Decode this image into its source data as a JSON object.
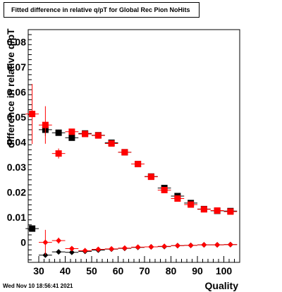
{
  "title": "Fitted difference in relative q/pT for Global Rec Pion NoHits",
  "timestamp": "Wed Nov 10 18:56:41 2021",
  "chart_data": {
    "type": "scatter",
    "title": "Fitted difference in relative q/pT for Global Rec Pion NoHits",
    "xlabel": "Quality",
    "ylabel": "difference in relative q/pT",
    "xlim": [
      26,
      106
    ],
    "ylim": [
      -0.008,
      0.085
    ],
    "grid": true,
    "x_ticks": [
      30,
      40,
      50,
      60,
      70,
      80,
      90,
      100
    ],
    "x_tick_labels": [
      "30",
      "40",
      "50",
      "60",
      "70",
      "80",
      "90",
      "100"
    ],
    "y_ticks": [
      0,
      0.01,
      0.02,
      0.03,
      0.04,
      0.05,
      0.06,
      0.07,
      0.08
    ],
    "y_tick_labels": [
      "0",
      "0.01",
      "0.02",
      "0.03",
      "0.04",
      "0.05",
      "0.06",
      "0.07",
      "0.08"
    ],
    "series": [
      {
        "marker": "square",
        "color": "#000000",
        "x": [
          27.5,
          32.5,
          37.5,
          42.5,
          47.5,
          52.5,
          57.5,
          62.5,
          67.5,
          72.5,
          77.5,
          82.5,
          87.5,
          92.5,
          97.5,
          102.5
        ],
        "y": [
          0.0055,
          0.045,
          0.0438,
          0.0418,
          0.0435,
          0.0428,
          0.0398,
          0.036,
          0.0313,
          0.0263,
          0.0217,
          0.0185,
          0.0157,
          0.0133,
          0.0126,
          0.0125
        ],
        "yerr": [
          0.0003,
          0.0025,
          0.0012,
          0.0008,
          0.0006,
          0.0006,
          0.0006,
          0.0005,
          0.0005,
          0.0005,
          0.0004,
          0.0004,
          0.0004,
          0.0004,
          0.0004,
          0.0004
        ]
      },
      {
        "marker": "square",
        "color": "#ff0000",
        "x": [
          27.5,
          32.5,
          37.5,
          42.5,
          47.5,
          52.5,
          57.5,
          62.5,
          67.5,
          72.5,
          77.5,
          82.5,
          87.5,
          92.5,
          97.5,
          102.5
        ],
        "y": [
          0.0513,
          0.0469,
          0.0355,
          0.0442,
          0.0433,
          0.0427,
          0.0395,
          0.036,
          0.0313,
          0.0262,
          0.0209,
          0.0175,
          0.0151,
          0.0132,
          0.0127,
          0.0123
        ],
        "yerr": [
          0.012,
          0.0075,
          0.002,
          0.001,
          0.0007,
          0.0006,
          0.0006,
          0.0005,
          0.0005,
          0.0005,
          0.0004,
          0.0004,
          0.0004,
          0.0004,
          0.0004,
          0.0004
        ]
      },
      {
        "marker": "diamond",
        "color": "#000000",
        "x": [
          32.5,
          37.5,
          42.5,
          47.5,
          52.5,
          57.5,
          62.5,
          67.5,
          72.5,
          77.5,
          82.5,
          87.5,
          92.5,
          97.5,
          102.5
        ],
        "y": [
          -0.0051,
          -0.0038,
          -0.004,
          -0.0036,
          -0.0031,
          -0.0027,
          -0.0024,
          -0.002,
          -0.0018,
          -0.0017,
          -0.0013,
          -0.0012,
          -0.001,
          -0.001,
          -0.0009
        ],
        "yerr": [
          0.0008,
          0.0005,
          0.0004,
          0.0003,
          0.0003,
          0.0002,
          0.0002,
          0.0002,
          0.0002,
          0.0002,
          0.0002,
          0.0002,
          0.0002,
          0.0002,
          0.0002
        ]
      },
      {
        "marker": "diamond",
        "color": "#ff0000",
        "x": [
          32.5,
          37.5,
          42.5,
          47.5,
          52.5,
          57.5,
          62.5,
          67.5,
          72.5,
          77.5,
          82.5,
          87.5,
          92.5,
          97.5,
          102.5
        ],
        "y": [
          0.0,
          0.0007,
          -0.0025,
          -0.0033,
          -0.0028,
          -0.0026,
          -0.0023,
          -0.0019,
          -0.0018,
          -0.0016,
          -0.0013,
          -0.0012,
          -0.001,
          -0.001,
          -0.0009
        ],
        "yerr": [
          0.005,
          0.0012,
          0.0005,
          0.0003,
          0.0003,
          0.0002,
          0.0002,
          0.0002,
          0.0002,
          0.0002,
          0.0002,
          0.0002,
          0.0002,
          0.0002,
          0.0002
        ]
      }
    ]
  }
}
